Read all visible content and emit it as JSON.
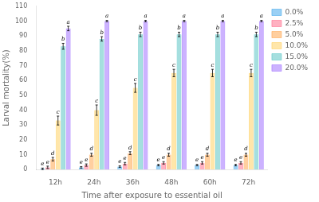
{
  "chart_data": {
    "type": "bar",
    "xlabel": "Time after exposure to essential oil",
    "ylabel": "Larval mortality(%)",
    "categories": [
      "12h",
      "24h",
      "36h",
      "48h",
      "60h",
      "72h"
    ],
    "series": [
      {
        "name": "0.0%",
        "values": [
          0.5,
          1.5,
          2.0,
          3.0,
          3.0,
          3.0
        ],
        "errors": [
          0.5,
          0.5,
          0.5,
          0.5,
          0.5,
          0.5
        ],
        "letters": [
          "e",
          "e",
          "e",
          "e",
          "e",
          "e"
        ]
      },
      {
        "name": "2.5%",
        "values": [
          1.5,
          3.0,
          4.0,
          4.5,
          4.5,
          4.5
        ],
        "errors": [
          0.8,
          0.8,
          0.8,
          0.8,
          0.8,
          0.8
        ],
        "letters": [
          "e",
          "e",
          "e",
          "e",
          "e",
          "e"
        ]
      },
      {
        "name": "5.0%",
        "values": [
          7.0,
          10.0,
          11.0,
          10.0,
          10.0,
          10.0
        ],
        "errors": [
          1.2,
          1.0,
          1.0,
          1.0,
          1.0,
          1.0
        ],
        "letters": [
          "d",
          "d",
          "d",
          "d",
          "d",
          "d"
        ]
      },
      {
        "name": "10.0%",
        "values": [
          33.0,
          40.0,
          55.0,
          65.0,
          65.0,
          65.0
        ],
        "errors": [
          3.0,
          3.5,
          3.0,
          2.5,
          2.5,
          2.5
        ],
        "letters": [
          "c",
          "c",
          "c",
          "c",
          "c",
          "c"
        ]
      },
      {
        "name": "15.0%",
        "values": [
          83.0,
          88.0,
          91.0,
          91.0,
          91.0,
          91.0
        ],
        "errors": [
          2.0,
          1.5,
          1.5,
          1.5,
          1.5,
          1.5
        ],
        "letters": [
          "b",
          "b",
          "b",
          "b",
          "b",
          "b"
        ]
      },
      {
        "name": "20.0%",
        "values": [
          95.0,
          100.0,
          100.0,
          100.0,
          100.0,
          100.0
        ],
        "errors": [
          1.5,
          0.5,
          0.5,
          0.5,
          0.5,
          0.5
        ],
        "letters": [
          "a",
          "a",
          "a",
          "a",
          "a",
          "a"
        ]
      }
    ],
    "ylim": [
      0,
      110
    ],
    "yticks": [
      0,
      10,
      20,
      30,
      40,
      50,
      60,
      70,
      80,
      90,
      100,
      110
    ],
    "grid": false,
    "legend": "right"
  }
}
